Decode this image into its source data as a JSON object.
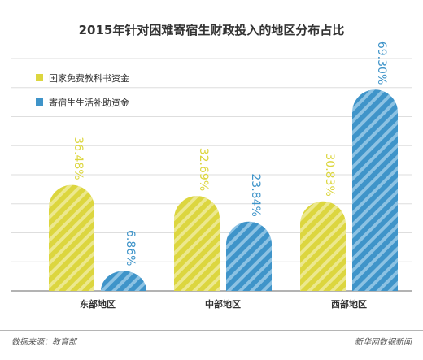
{
  "chart_data": {
    "type": "bar",
    "title": "2015年针对困难寄宿生财政投入的地区分布占比",
    "categories": [
      "东部地区",
      "中部地区",
      "西部地区"
    ],
    "series": [
      {
        "name": "国家免费教科书资金",
        "values": [
          36.48,
          32.69,
          30.83
        ],
        "labels": [
          "36.48%",
          "32.69%",
          "30.83%"
        ],
        "color": "#dcd63f"
      },
      {
        "name": "寄宿生生活补助资金",
        "values": [
          6.86,
          23.84,
          69.3
        ],
        "labels": [
          "6.86%",
          "23.84%",
          "69.30%"
        ],
        "color": "#3f94c9"
      }
    ],
    "ylim": [
      0,
      80
    ],
    "grid": true,
    "legend_position": "top-left",
    "xlabel": "",
    "ylabel": ""
  },
  "footer": {
    "source": "数据来源：教育部",
    "brand": "新华网数据新闻"
  }
}
